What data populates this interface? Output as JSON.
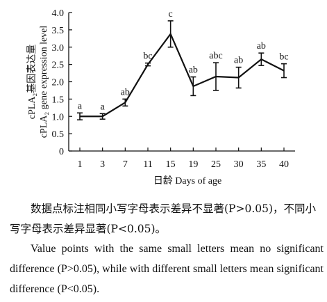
{
  "chart_data": {
    "type": "line",
    "ylabel_top": "cPLA₂基因表达量",
    "ylabel_bottom": "cPLA₂ gene expression level",
    "xlabel": "日龄  Days of age",
    "categories": [
      "1",
      "3",
      "7",
      "11",
      "15",
      "19",
      "25",
      "30",
      "35",
      "40"
    ],
    "values": [
      1.0,
      1.0,
      1.4,
      2.5,
      3.38,
      1.87,
      2.15,
      2.12,
      2.65,
      2.32
    ],
    "errors": [
      0.1,
      0.08,
      0.1,
      0.04,
      0.38,
      0.27,
      0.4,
      0.3,
      0.18,
      0.2
    ],
    "significance": [
      "a",
      "a",
      "ab",
      "bc",
      "c",
      "ab",
      "abc",
      "ab",
      "ab",
      "bc"
    ],
    "ylim": [
      0,
      4.0
    ],
    "yticks": [
      "0",
      "0.5",
      "1.0",
      "1.5",
      "2.0",
      "2.5",
      "3.0",
      "3.5",
      "4.0"
    ]
  },
  "caption": {
    "zh": "数据点标注相同小写字母表示差异不显著(P>0.05)，不同小写字母表示差异显著(P<0.05)。",
    "en": "Value points with the same small letters mean no significant difference (P>0.05), while with different small letters mean significant difference (P<0.05)."
  }
}
